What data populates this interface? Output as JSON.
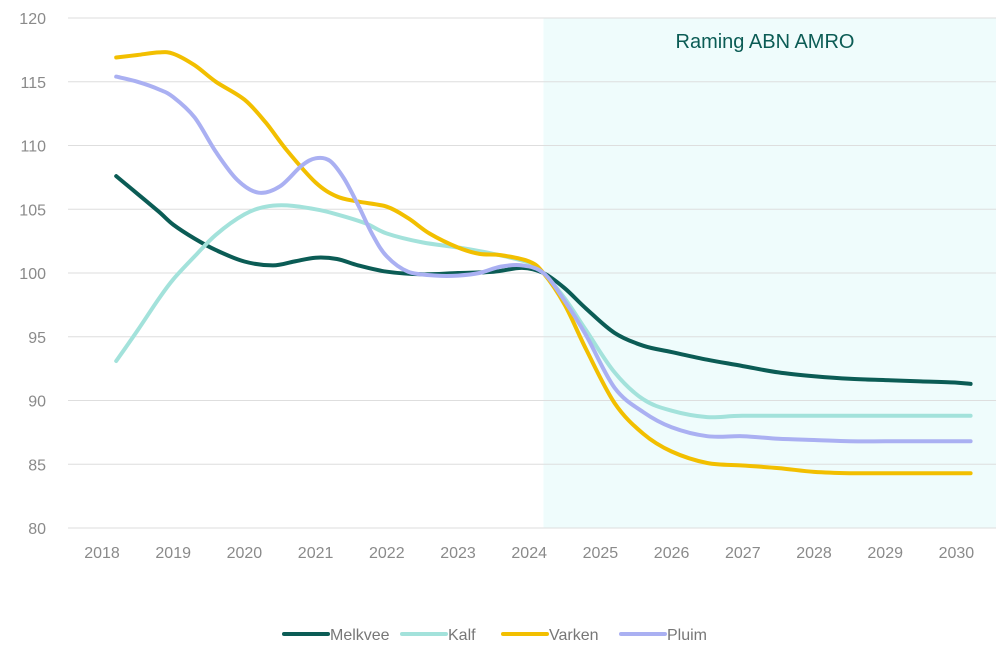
{
  "chart_data": {
    "type": "line",
    "title": "",
    "xlabel": "",
    "ylabel": "",
    "ylim": [
      80,
      120
    ],
    "xlim": [
      2017.8,
      2030.6
    ],
    "yticks": [
      80,
      85,
      90,
      95,
      100,
      105,
      110,
      115,
      120
    ],
    "xticks": [
      "2018",
      "2019",
      "2020",
      "2021",
      "2022",
      "2023",
      "2024",
      "2025",
      "2026",
      "2027",
      "2028",
      "2029",
      "2030"
    ],
    "grid": "horizontal",
    "legend_position": "bottom",
    "forecast_region": {
      "from": 2024.2,
      "to": 2030.6,
      "label": "Raming ABN AMRO",
      "color": "#effcfc"
    },
    "series": [
      {
        "name": "Melkvee",
        "color": "#0b5c55",
        "x": [
          2018.2,
          2018.5,
          2018.8,
          2019.0,
          2019.3,
          2019.6,
          2020.0,
          2020.4,
          2020.7,
          2021.0,
          2021.3,
          2021.6,
          2022.0,
          2022.5,
          2023.0,
          2023.5,
          2023.9,
          2024.2,
          2024.5,
          2024.8,
          2025.2,
          2025.6,
          2026.0,
          2026.5,
          2027.0,
          2027.5,
          2028.0,
          2028.5,
          2029.0,
          2029.5,
          2030.0,
          2030.2
        ],
        "y": [
          107.6,
          106.2,
          104.8,
          103.8,
          102.7,
          101.8,
          100.9,
          100.6,
          100.9,
          101.2,
          101.1,
          100.6,
          100.1,
          99.9,
          100.0,
          100.1,
          100.4,
          100.0,
          98.8,
          97.2,
          95.3,
          94.3,
          93.8,
          93.2,
          92.7,
          92.2,
          91.9,
          91.7,
          91.6,
          91.5,
          91.4,
          91.3
        ]
      },
      {
        "name": "Kalf",
        "color": "#a3e2db",
        "x": [
          2018.2,
          2018.5,
          2018.8,
          2019.0,
          2019.3,
          2019.6,
          2020.0,
          2020.3,
          2020.6,
          2021.0,
          2021.3,
          2021.7,
          2022.0,
          2022.5,
          2023.0,
          2023.5,
          2024.0,
          2024.2,
          2024.5,
          2024.8,
          2025.2,
          2025.6,
          2026.0,
          2026.5,
          2027.0,
          2028.0,
          2029.0,
          2030.0,
          2030.2
        ],
        "y": [
          93.1,
          95.5,
          98.0,
          99.5,
          101.3,
          103.0,
          104.6,
          105.2,
          105.3,
          105.0,
          104.6,
          103.9,
          103.1,
          102.4,
          102.0,
          101.5,
          100.8,
          100.0,
          98.0,
          95.5,
          92.2,
          90.1,
          89.2,
          88.7,
          88.8,
          88.8,
          88.8,
          88.8,
          88.8
        ]
      },
      {
        "name": "Varken",
        "color": "#f2bf00",
        "x": [
          2018.2,
          2018.5,
          2018.8,
          2019.0,
          2019.3,
          2019.6,
          2020.0,
          2020.3,
          2020.6,
          2021.0,
          2021.3,
          2021.6,
          2022.0,
          2022.3,
          2022.6,
          2023.0,
          2023.3,
          2023.6,
          2024.0,
          2024.2,
          2024.5,
          2024.8,
          2025.2,
          2025.6,
          2026.0,
          2026.5,
          2027.0,
          2027.5,
          2028.0,
          2028.5,
          2029.0,
          2029.5,
          2030.0,
          2030.2
        ],
        "y": [
          116.9,
          117.1,
          117.3,
          117.2,
          116.3,
          115.0,
          113.6,
          111.8,
          109.6,
          107.1,
          106.0,
          105.6,
          105.2,
          104.3,
          103.1,
          102.0,
          101.5,
          101.4,
          100.9,
          100.0,
          97.5,
          94.0,
          89.8,
          87.4,
          86.0,
          85.1,
          84.9,
          84.7,
          84.4,
          84.3,
          84.3,
          84.3,
          84.3,
          84.3
        ]
      },
      {
        "name": "Pluim",
        "color": "#aab0f2",
        "x": [
          2018.2,
          2018.5,
          2018.8,
          2019.0,
          2019.3,
          2019.6,
          2019.9,
          2020.2,
          2020.5,
          2020.8,
          2021.0,
          2021.2,
          2021.4,
          2021.6,
          2021.8,
          2022.0,
          2022.3,
          2022.7,
          2023.0,
          2023.3,
          2023.6,
          2023.9,
          2024.2,
          2024.5,
          2024.8,
          2025.2,
          2025.6,
          2026.0,
          2026.5,
          2027.0,
          2027.5,
          2028.0,
          2028.5,
          2029.0,
          2029.5,
          2030.0,
          2030.2
        ],
        "y": [
          115.4,
          115.0,
          114.4,
          113.8,
          112.2,
          109.5,
          107.3,
          106.3,
          106.8,
          108.4,
          109.0,
          108.8,
          107.4,
          105.3,
          103.0,
          101.3,
          100.1,
          99.8,
          99.8,
          100.0,
          100.5,
          100.6,
          100.0,
          97.8,
          95.1,
          91.0,
          89.1,
          87.9,
          87.2,
          87.2,
          87.0,
          86.9,
          86.8,
          86.8,
          86.8,
          86.8,
          86.8
        ]
      }
    ]
  }
}
